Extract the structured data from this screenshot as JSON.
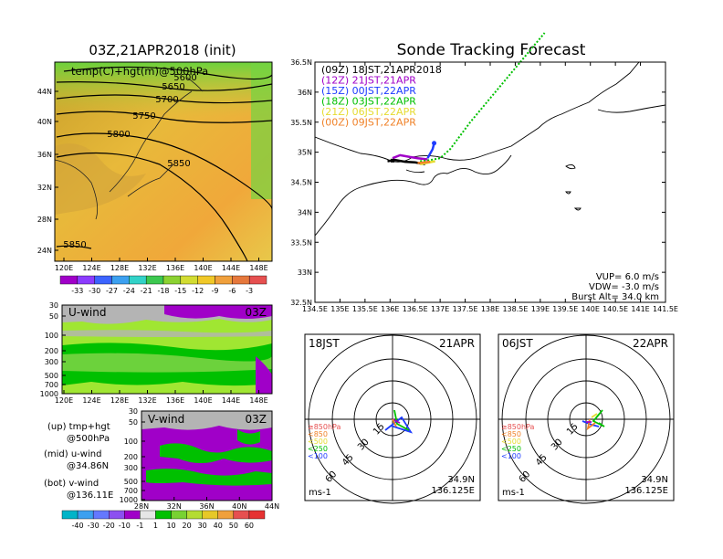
{
  "colors": {
    "purple": "#a000c8",
    "blue": "#1e3cff",
    "green": "#00c000",
    "lime": "#a0e632",
    "orange": "#f08228",
    "yellow": "#e6dc32",
    "black": "#000000",
    "gray": "#b4b4b4"
  },
  "left_top": {
    "title": "03Z,21APR2018 (init)",
    "label": "temp(C)+hgt(m)@500hPa",
    "y_ticks": [
      "44N",
      "40N",
      "36N",
      "32N",
      "28N",
      "24N"
    ],
    "x_ticks": [
      "120E",
      "124E",
      "128E",
      "132E",
      "136E",
      "140E",
      "144E",
      "148E"
    ],
    "contours": [
      "5600",
      "5650",
      "5700",
      "5750",
      "5800",
      "5850",
      "5850"
    ],
    "colorbar": [
      "-33",
      "-30",
      "-27",
      "-24",
      "-21",
      "-18",
      "-15",
      "-12",
      "-9",
      "-6",
      "-3"
    ]
  },
  "left_mid": {
    "label": "U-wind",
    "time": "03Z",
    "y_ticks": [
      "30",
      "50",
      "100",
      "200",
      "300",
      "500",
      "700",
      "1000"
    ],
    "x_ticks": [
      "120E",
      "124E",
      "128E",
      "132E",
      "136E",
      "140E",
      "144E",
      "148E"
    ]
  },
  "left_bot": {
    "label": "V-wind",
    "time": "03Z",
    "y_ticks": [
      "30",
      "50",
      "100",
      "200",
      "300",
      "500",
      "700",
      "1000"
    ],
    "x_ticks": [
      "28N",
      "32N",
      "36N",
      "40N",
      "44N"
    ]
  },
  "legend_left": {
    "l1": "(up) tmp+hgt",
    "l2": "@500hPa",
    "l3": "(mid) u-wind",
    "l4": "@34.86N",
    "l5": "(bot) v-wind",
    "l6": "@136.11E"
  },
  "colorbar_bottom": [
    "-40",
    "-30",
    "-20",
    "-10",
    "-1",
    "1",
    "10",
    "20",
    "30",
    "40",
    "50",
    "60"
  ],
  "chart_data": {
    "type": "line",
    "title": "Sonde Tracking Forecast",
    "x_ticks": [
      "134.5E",
      "135E",
      "135.5E",
      "136E",
      "136.5E",
      "137E",
      "137.5E",
      "138E",
      "138.5E",
      "139E",
      "139.5E",
      "140E",
      "140.5E",
      "141E",
      "141.5E"
    ],
    "y_ticks": [
      "36.5N",
      "36N",
      "35.5N",
      "35N",
      "34.5N",
      "34N",
      "33.5N",
      "33N",
      "32.5N"
    ],
    "xlim": [
      134.5,
      141.5
    ],
    "ylim": [
      32.5,
      36.5
    ],
    "legend": [
      {
        "label": "(09Z)  18JST,21APR2018",
        "color": "#000000"
      },
      {
        "label": "(12Z)  21JST,21APR",
        "color": "#a000c8"
      },
      {
        "label": "(15Z)  00JST,22APR",
        "color": "#1e3cff"
      },
      {
        "label": "(18Z)  03JST,22APR",
        "color": "#00c000"
      },
      {
        "label": "(21Z)  06JST,22APR",
        "color": "#e6dc32"
      },
      {
        "label": "(00Z)  09JST,22APR",
        "color": "#f08228"
      }
    ],
    "series": [
      {
        "name": "(09Z)",
        "color": "#000000",
        "points": [
          [
            135.95,
            34.85
          ],
          [
            136.1,
            34.87
          ],
          [
            136.3,
            34.84
          ],
          [
            136.5,
            34.83
          ],
          [
            136.7,
            34.8
          ]
        ]
      },
      {
        "name": "(12Z)",
        "color": "#a000c8",
        "points": [
          [
            136.05,
            34.9
          ],
          [
            136.2,
            34.95
          ],
          [
            136.4,
            34.92
          ],
          [
            136.55,
            34.9
          ],
          [
            136.75,
            34.88
          ]
        ]
      },
      {
        "name": "(15Z)",
        "color": "#1e3cff",
        "points": [
          [
            136.75,
            34.9
          ],
          [
            136.85,
            35.05
          ],
          [
            136.88,
            35.15
          ]
        ]
      },
      {
        "name": "(18Z)",
        "color": "#00c000",
        "points": [
          [
            136.6,
            34.85
          ],
          [
            136.8,
            34.87
          ],
          [
            137.0,
            34.9
          ],
          [
            137.2,
            35.05
          ],
          [
            137.6,
            35.5
          ],
          [
            138.1,
            36.0
          ],
          [
            138.6,
            36.5
          ],
          [
            139.3,
            37.2
          ]
        ]
      },
      {
        "name": "(21Z)",
        "color": "#e6dc32",
        "points": [
          [
            136.6,
            34.8
          ],
          [
            136.9,
            34.85
          ]
        ]
      },
      {
        "name": "(00Z)",
        "color": "#f08228",
        "points": [
          [
            136.55,
            34.82
          ],
          [
            136.8,
            34.84
          ]
        ]
      }
    ],
    "info": {
      "l1": "VUP=  6.0 m/s",
      "l2": "VDW= -3.0 m/s",
      "l3": "Burst Alt=  34.0 km"
    }
  },
  "hodo_left": {
    "time": "18JST",
    "date": "21APR",
    "unit": "ms-1",
    "lat": "34.9N",
    "lon": "136.125E",
    "rings": [
      "15",
      "30",
      "45",
      "60"
    ],
    "levels": [
      "≥850hPa",
      "<850",
      "<500",
      "<250",
      "<100"
    ]
  },
  "hodo_right": {
    "time": "06JST",
    "date": "22APR",
    "unit": "ms-1",
    "lat": "34.9N",
    "lon": "136.125E",
    "rings": [
      "15",
      "30",
      "45",
      "60"
    ],
    "levels": [
      "≥850hPa",
      "<850",
      "<500",
      "<250",
      "<100"
    ]
  }
}
